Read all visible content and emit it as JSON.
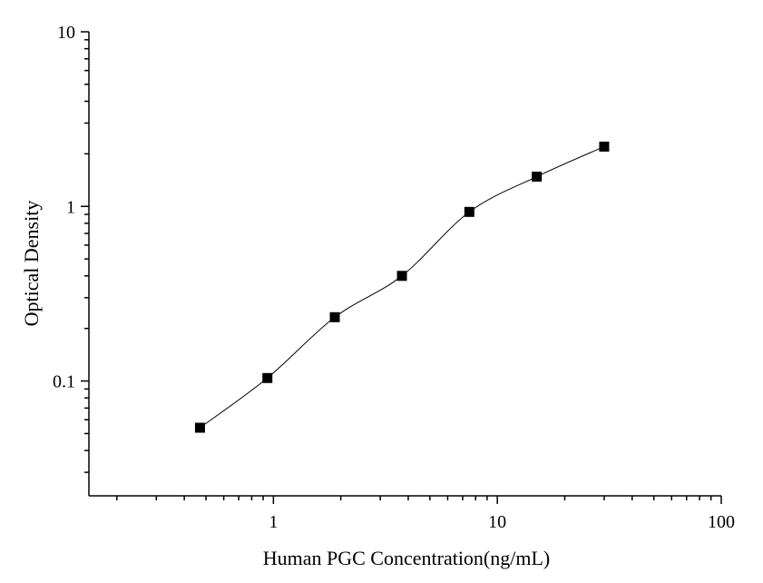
{
  "chart_data": {
    "type": "scatter",
    "xlabel": "Human PGC  Concentration(ng/mL)",
    "ylabel": "Optical Density",
    "xscale": "log",
    "yscale": "log",
    "xlim": [
      0.15,
      100
    ],
    "ylim": [
      0.022,
      10
    ],
    "x_ticks": [
      {
        "value": 1,
        "label": "1"
      },
      {
        "value": 10,
        "label": "10"
      },
      {
        "value": 100,
        "label": "100"
      }
    ],
    "y_ticks": [
      {
        "value": 0.1,
        "label": "0.1"
      },
      {
        "value": 1,
        "label": "1"
      },
      {
        "value": 10,
        "label": "10"
      }
    ],
    "grid": false,
    "legend": "none",
    "series": [
      {
        "x": [
          0.47,
          0.94,
          1.88,
          3.75,
          7.5,
          15,
          30
        ],
        "y": [
          0.054,
          0.104,
          0.232,
          0.4,
          0.93,
          1.48,
          2.2
        ],
        "fit_curve": true,
        "marker": "square",
        "color": "#000000"
      }
    ]
  }
}
